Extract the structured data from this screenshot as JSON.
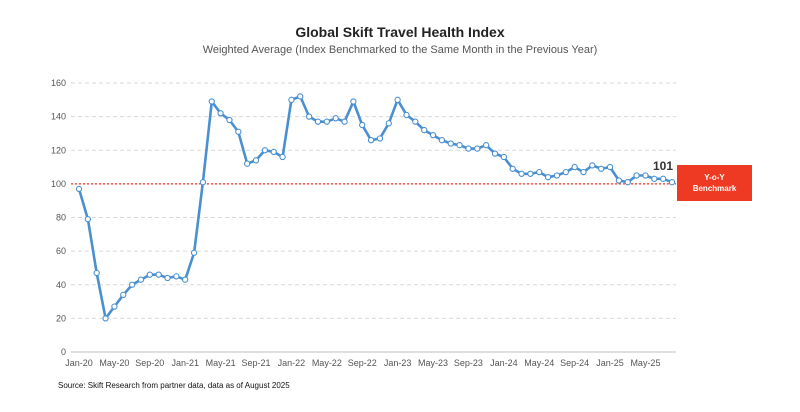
{
  "chart_data": {
    "type": "line",
    "title": "Global Skift Travel Health Index",
    "subtitle": "Weighted Average (Index Benchmarked to the Same Month in the Previous Year)",
    "x_tick_labels": [
      "Jan-20",
      "May-20",
      "Sep-20",
      "Jan-21",
      "May-21",
      "Sep-21",
      "Jan-22",
      "May-22",
      "Sep-22",
      "Jan-23",
      "May-23",
      "Sep-23",
      "Jan-24",
      "May-24",
      "Sep-24",
      "Jan-25",
      "May-25"
    ],
    "x": [
      "Jan-20",
      "Feb-20",
      "Mar-20",
      "Apr-20",
      "May-20",
      "Jun-20",
      "Jul-20",
      "Aug-20",
      "Sep-20",
      "Oct-20",
      "Nov-20",
      "Dec-20",
      "Jan-21",
      "Feb-21",
      "Mar-21",
      "Apr-21",
      "May-21",
      "Jun-21",
      "Jul-21",
      "Aug-21",
      "Sep-21",
      "Oct-21",
      "Nov-21",
      "Dec-21",
      "Jan-22",
      "Feb-22",
      "Mar-22",
      "Apr-22",
      "May-22",
      "Jun-22",
      "Jul-22",
      "Aug-22",
      "Sep-22",
      "Oct-22",
      "Nov-22",
      "Dec-22",
      "Jan-23",
      "Feb-23",
      "Mar-23",
      "Apr-23",
      "May-23",
      "Jun-23",
      "Jul-23",
      "Aug-23",
      "Sep-23",
      "Oct-23",
      "Nov-23",
      "Dec-23",
      "Jan-24",
      "Feb-24",
      "Mar-24",
      "Apr-24",
      "May-24",
      "Jun-24",
      "Jul-24",
      "Aug-24",
      "Sep-24",
      "Oct-24",
      "Nov-24",
      "Dec-24",
      "Jan-25",
      "Feb-25",
      "Mar-25",
      "Apr-25",
      "May-25",
      "Jun-25",
      "Jul-25",
      "Aug-25"
    ],
    "series": [
      {
        "values": [
          97,
          79,
          47,
          20,
          27,
          34,
          40,
          43,
          46,
          46,
          44,
          45,
          43,
          59,
          101,
          149,
          142,
          138,
          131,
          112,
          114,
          120,
          119,
          116,
          150,
          152,
          140,
          137,
          137,
          139,
          137,
          149,
          135,
          126,
          127,
          136,
          150,
          141,
          137,
          132,
          129,
          126,
          124,
          123,
          121,
          121,
          123,
          118,
          116,
          109,
          106,
          106,
          107,
          104,
          105,
          107,
          110,
          107,
          111,
          109,
          110,
          102,
          101,
          105,
          105,
          103,
          103,
          101
        ],
        "color": "#4a90d0"
      }
    ],
    "last_value_label": "101",
    "ylim": [
      0,
      160
    ],
    "yticks": [
      0,
      20,
      40,
      60,
      80,
      100,
      120,
      140,
      160
    ],
    "benchmark": {
      "value": 100,
      "color": "#ee3a23",
      "label_line1": "Y-o-Y",
      "label_line2": "Benchmark"
    },
    "grid": true
  },
  "source_note": "Source: Skift Research from partner data, data as of August 2025"
}
